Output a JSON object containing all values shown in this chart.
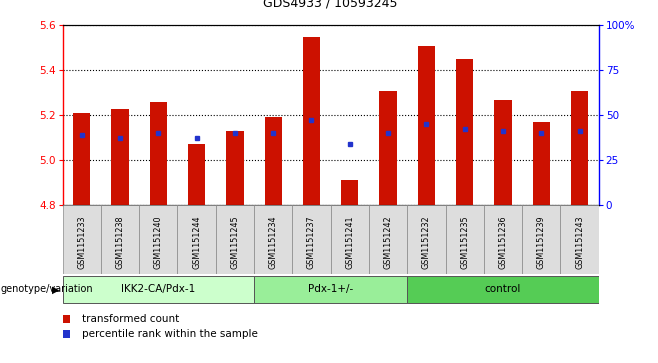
{
  "title": "GDS4933 / 10593245",
  "samples": [
    "GSM1151233",
    "GSM1151238",
    "GSM1151240",
    "GSM1151244",
    "GSM1151245",
    "GSM1151234",
    "GSM1151237",
    "GSM1151241",
    "GSM1151242",
    "GSM1151232",
    "GSM1151235",
    "GSM1151236",
    "GSM1151239",
    "GSM1151243"
  ],
  "bar_values": [
    5.21,
    5.23,
    5.26,
    5.07,
    5.13,
    5.19,
    5.55,
    4.91,
    5.31,
    5.51,
    5.45,
    5.27,
    5.17,
    5.31
  ],
  "percentile_values": [
    5.11,
    5.1,
    5.12,
    5.1,
    5.12,
    5.12,
    5.18,
    5.07,
    5.12,
    5.16,
    5.14,
    5.13,
    5.12,
    5.13
  ],
  "ylim_left": [
    4.8,
    5.6
  ],
  "ylim_right": [
    0,
    100
  ],
  "yticks_left": [
    4.8,
    5.0,
    5.2,
    5.4,
    5.6
  ],
  "yticks_right": [
    0,
    25,
    50,
    75,
    100
  ],
  "ytick_labels_right": [
    "0",
    "25",
    "50",
    "75",
    "100%"
  ],
  "groups": [
    {
      "label": "IKK2-CA/Pdx-1",
      "start": 0,
      "end": 5
    },
    {
      "label": "Pdx-1+/-",
      "start": 5,
      "end": 9
    },
    {
      "label": "control",
      "start": 9,
      "end": 14
    }
  ],
  "group_colors": [
    "#ccffcc",
    "#99ee99",
    "#55cc55"
  ],
  "bar_color": "#cc1100",
  "dot_color": "#2233cc",
  "bar_width": 0.45,
  "base_value": 4.8,
  "genotype_label": "genotype/variation",
  "legend_items": [
    {
      "label": "transformed count",
      "color": "#cc1100"
    },
    {
      "label": "percentile rank within the sample",
      "color": "#2233cc"
    }
  ]
}
